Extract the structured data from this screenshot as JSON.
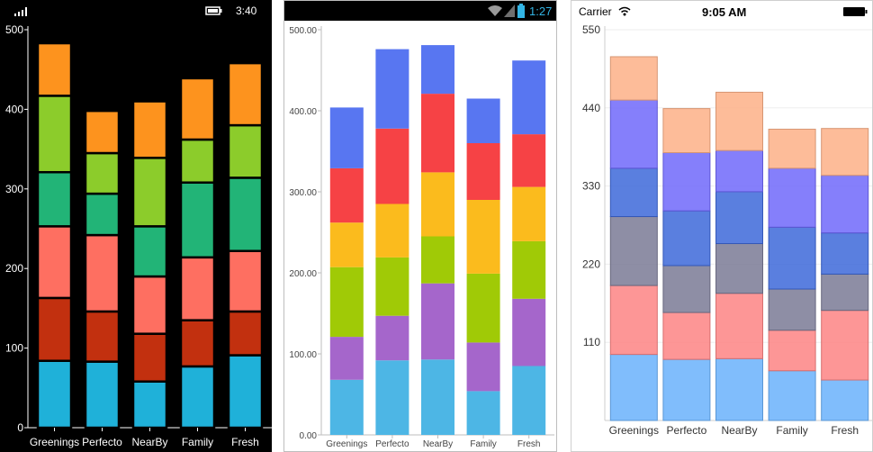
{
  "phones": {
    "windows": {
      "time": "3:40"
    },
    "android": {
      "time": "1:27"
    },
    "ios": {
      "carrier": "Carrier",
      "time": "9:05 AM"
    }
  },
  "chart_data": [
    {
      "type": "bar",
      "stacked": true,
      "categories": [
        "Greenings",
        "Perfecto",
        "NearBy",
        "Family",
        "Fresh"
      ],
      "ylim": [
        0,
        500
      ],
      "yticks": [
        "0",
        "100",
        "200",
        "300",
        "400",
        "500"
      ],
      "colors": [
        "#1fb1d9",
        "#c2300f",
        "#fe6f61",
        "#22b477",
        "#8ccc2b",
        "#fd931e"
      ],
      "series": [
        {
          "values": [
            84,
            83,
            58,
            77,
            91
          ]
        },
        {
          "values": [
            79,
            63,
            60,
            58,
            55
          ]
        },
        {
          "values": [
            90,
            96,
            72,
            79,
            76
          ]
        },
        {
          "values": [
            68,
            52,
            63,
            94,
            92
          ]
        },
        {
          "values": [
            96,
            51,
            86,
            54,
            66
          ]
        },
        {
          "values": [
            66,
            53,
            71,
            77,
            78
          ]
        }
      ],
      "grid": false
    },
    {
      "type": "bar",
      "stacked": true,
      "categories": [
        "Greenings",
        "Perfecto",
        "NearBy",
        "Family",
        "Fresh"
      ],
      "ylim": [
        0,
        500
      ],
      "yticks": [
        "0.00",
        "100.00",
        "200.00",
        "300.00",
        "400.00",
        "500.00"
      ],
      "colors": [
        "#4db6e5",
        "#a566cb",
        "#a0ca06",
        "#fbbb1d",
        "#f64245",
        "#5876f1"
      ],
      "series": [
        {
          "values": [
            68,
            92,
            93,
            54,
            85
          ]
        },
        {
          "values": [
            53,
            55,
            94,
            60,
            83
          ]
        },
        {
          "values": [
            86,
            72,
            58,
            85,
            71
          ]
        },
        {
          "values": [
            55,
            66,
            79,
            91,
            67
          ]
        },
        {
          "values": [
            67,
            93,
            97,
            70,
            65
          ]
        },
        {
          "values": [
            75,
            98,
            60,
            55,
            91
          ]
        }
      ],
      "grid": false
    },
    {
      "type": "bar",
      "stacked": true,
      "categories": [
        "Greenings",
        "Perfecto",
        "NearBy",
        "Family",
        "Fresh"
      ],
      "ylim": [
        0,
        550
      ],
      "yticks": [
        "110",
        "220",
        "330",
        "440",
        "550"
      ],
      "colors": [
        "#6ab2fb",
        "#fd8484",
        "#7a7a95",
        "#3d68d9",
        "#7068fa",
        "#fdb087"
      ],
      "series": [
        {
          "values": [
            93,
            86,
            87,
            70,
            57
          ]
        },
        {
          "values": [
            97,
            66,
            92,
            57,
            98
          ]
        },
        {
          "values": [
            97,
            66,
            70,
            58,
            51
          ]
        },
        {
          "values": [
            68,
            77,
            73,
            87,
            58
          ]
        },
        {
          "values": [
            96,
            82,
            58,
            83,
            81
          ]
        },
        {
          "values": [
            61,
            62,
            82,
            55,
            66
          ]
        }
      ],
      "grid": true
    }
  ]
}
